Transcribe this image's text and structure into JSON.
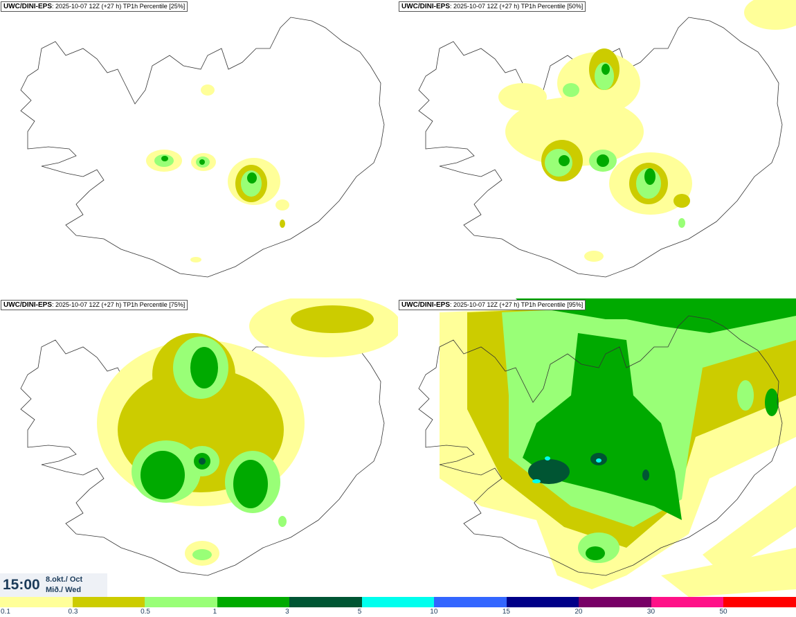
{
  "panels": [
    {
      "model": "UWC/DINI-EPS",
      "run": ": 2025-10-07 12Z (+27 h)",
      "param": "TP1h Percentile [25%]"
    },
    {
      "model": "UWC/DINI-EPS",
      "run": ": 2025-10-07 12Z (+27 h)",
      "param": "TP1h Percentile [50%]"
    },
    {
      "model": "UWC/DINI-EPS",
      "run": ": 2025-10-07 12Z (+27 h)",
      "param": "TP1h Percentile [75%]"
    },
    {
      "model": "UWC/DINI-EPS",
      "run": ": 2025-10-07 12Z (+27 h)",
      "param": "TP1h Percentile [95%]"
    }
  ],
  "valid": {
    "time": "15:00",
    "date_line": "8.okt./ Oct",
    "day_line": "Mið./ Wed"
  },
  "legend": {
    "colors": [
      "#ffff99",
      "#cccc00",
      "#99ff77",
      "#00aa00",
      "#005533",
      "#00ffee",
      "#3366ff",
      "#000088",
      "#770066",
      "#ff1188",
      "#ff0000"
    ],
    "ticks": [
      "0.1",
      "0.3",
      "0.5",
      "1",
      "3",
      "5",
      "10",
      "15",
      "20",
      "30",
      "50"
    ]
  }
}
